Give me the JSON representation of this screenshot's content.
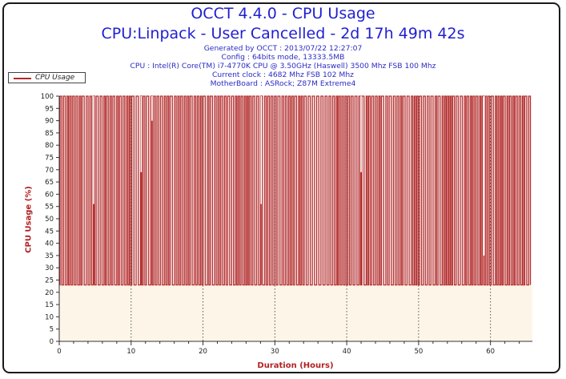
{
  "header": {
    "title": "OCCT 4.4.0 - CPU Usage",
    "subtitle": "CPU:Linpack - User Cancelled - 2d 17h 49m 42s",
    "info_lines": [
      "Generated by OCCT : 2013/07/22 12:27:07",
      "Config : 64bits mode, 13333.5MB",
      "CPU : Intel(R) Core(TM) i7-4770K CPU @ 3.50GHz (Haswell) 3500 Mhz FSB 100 Mhz",
      "Current clock : 4682 Mhz FSB 102 Mhz",
      "MotherBoard : ASRock; Z87M Extreme4"
    ]
  },
  "legend": {
    "entry": "CPU Usage"
  },
  "colors": {
    "series": "#b32a2a",
    "plot_background": "#fdf6e8",
    "axis_label": "#b22222",
    "title": "#1f1fd2"
  },
  "chart_data": {
    "type": "line",
    "title": "OCCT 4.4.0 - CPU Usage",
    "xlabel": "Duration (Hours)",
    "ylabel": "CPU Usage (%)",
    "xlim": [
      0,
      65.83
    ],
    "ylim": [
      0,
      100
    ],
    "x_ticks": [
      0,
      10,
      20,
      30,
      40,
      50,
      60
    ],
    "y_ticks": [
      0,
      5,
      10,
      15,
      20,
      25,
      30,
      35,
      40,
      45,
      50,
      55,
      60,
      65,
      70,
      75,
      80,
      85,
      90,
      95,
      100
    ],
    "grid": "vertical dotted lines at 10-hour intervals",
    "legend_position": "top-left",
    "series": [
      {
        "name": "CPU Usage",
        "pattern": "rapid oscillation between about 23% and 100% for the whole run",
        "low": 23,
        "high": 100,
        "dips": [
          {
            "x": 4.8,
            "y": 56
          },
          {
            "x": 11.4,
            "y": 69
          },
          {
            "x": 12.9,
            "y": 90
          },
          {
            "x": 28.1,
            "y": 56
          },
          {
            "x": 42.0,
            "y": 69
          },
          {
            "x": 59.1,
            "y": 35
          }
        ]
      }
    ]
  }
}
